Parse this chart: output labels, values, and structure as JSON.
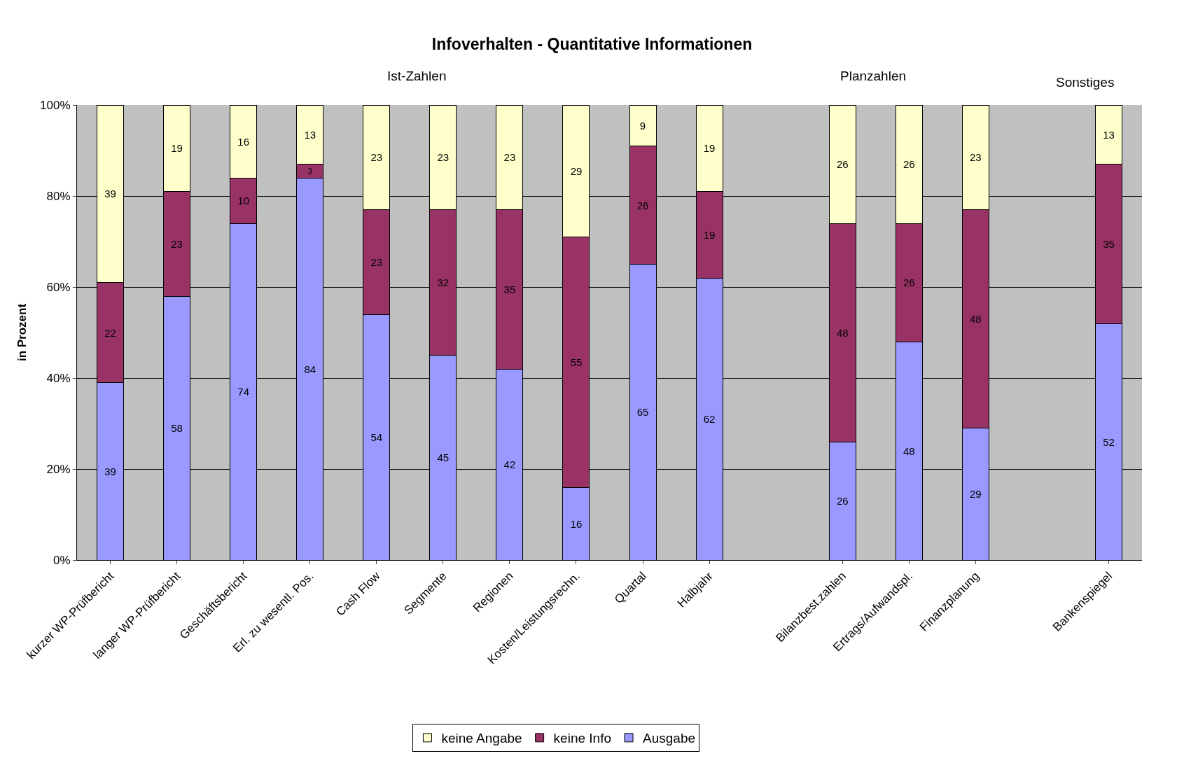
{
  "chart_data": {
    "type": "bar",
    "title": "Infoverhalten - Quantitative Informationen",
    "ylabel": "in Prozent",
    "categories": [
      "kurzer WP-Prüfbericht",
      "langer WP-Prüfbericht",
      "Geschäftsbericht",
      "Erl. zu wesentl. Pos.",
      "Cash Flow",
      "Segmente",
      "Regionen",
      "Kosten/Leistungsrechn.",
      "Quartal",
      "Halbjahr",
      null,
      "Bilanzbest.zahlen",
      "Ertrags/Aufwandspl.",
      "Finanzplanung",
      null,
      "Bankenspiegel"
    ],
    "series": [
      {
        "name": "Ausgabe",
        "color": "#9999ff",
        "values": [
          39,
          58,
          74,
          84,
          54,
          45,
          42,
          16,
          65,
          62,
          null,
          26,
          48,
          29,
          null,
          52
        ]
      },
      {
        "name": "keine Info",
        "color": "#993366",
        "values": [
          22,
          23,
          10,
          3,
          23,
          32,
          35,
          55,
          26,
          19,
          null,
          48,
          26,
          48,
          null,
          35
        ]
      },
      {
        "name": "keine Angabe",
        "color": "#ffffcc",
        "values": [
          39,
          19,
          16,
          13,
          23,
          23,
          23,
          29,
          9,
          19,
          null,
          26,
          26,
          23,
          null,
          13
        ]
      }
    ],
    "stacked": true,
    "data_labels": true,
    "ylim": [
      0,
      100
    ],
    "yticks": [
      {
        "value": 0,
        "label": "0%"
      },
      {
        "value": 20,
        "label": "20%"
      },
      {
        "value": 40,
        "label": "40%"
      },
      {
        "value": 60,
        "label": "60%"
      },
      {
        "value": 80,
        "label": "80%"
      },
      {
        "value": 100,
        "label": "100%"
      }
    ],
    "grid": "y",
    "legend": "bottom",
    "annotations": [
      "Ist-Zahlen",
      "Planzahlen",
      "Sonstiges"
    ]
  }
}
